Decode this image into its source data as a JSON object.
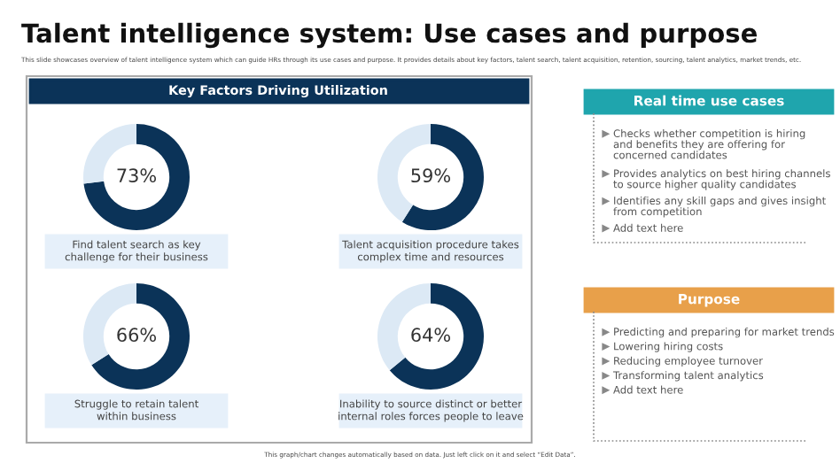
{
  "chart_data": [
    {
      "type": "other",
      "title": "Talent intelligence system: Use cases and purpose",
      "subtitle": "This slide showcases overview of talent intelligence system which can guide HRs through its use cases and purpose. It provides details about key factors, talent search, talent acquisition, retention, sourcing, talent analytics, market trends, etc.",
      "annotations": [
        "This graph/chart changes automatically based on data. Just left click on it and select “Edit Data”."
      ]
    },
    {
      "type": "other",
      "title": "Key Factors Driving Utilization",
      "color": "#0b3358"
    },
    {
      "type": "other",
      "title": "Real time use cases",
      "color": "#1fa5ad",
      "annotations": [
        "Checks whether competition is hiring\nand benefits they are offering for\nconcerned candidates",
        "Provides analytics on best hiring channels\nto source higher quality candidates",
        "Identifies any skill gaps and gives insight\nfrom competition",
        "Add text here"
      ]
    },
    {
      "type": "other",
      "title": "Purpose",
      "color": "#e8a04a",
      "annotations": [
        "Predicting and preparing for market trends",
        "Lowering hiring costs",
        "Reducing employee turnover",
        "Transforming talent analytics",
        "Add text here"
      ]
    },
    {
      "type": "donut",
      "title": "Find talent search as key\nchallenge for their business",
      "categories": [
        null,
        null
      ],
      "values": [
        73,
        27
      ],
      "colors": [
        "#0b3358",
        "#dce9f5"
      ],
      "value_labels": [
        "73%",
        null
      ]
    },
    {
      "type": "donut",
      "title": "Talent acquisition procedure takes\ncomplex time and resources",
      "categories": [
        null,
        null
      ],
      "values": [
        59,
        41
      ],
      "colors": [
        "#0b3358",
        "#dce9f5"
      ],
      "value_labels": [
        "59%",
        null
      ]
    },
    {
      "type": "donut",
      "title": "Struggle to retain talent\nwithin business",
      "categories": [
        null,
        null
      ],
      "values": [
        66,
        34
      ],
      "colors": [
        "#0b3358",
        "#dce9f5"
      ],
      "value_labels": [
        "66%",
        null
      ]
    },
    {
      "type": "donut",
      "title": "Inability to source distinct or better\ninternal roles forces people to leave",
      "categories": [
        null,
        null
      ],
      "values": [
        64,
        36
      ],
      "colors": [
        "#0b3358",
        "#dce9f5"
      ],
      "value_labels": [
        "64%",
        null
      ]
    }
  ]
}
